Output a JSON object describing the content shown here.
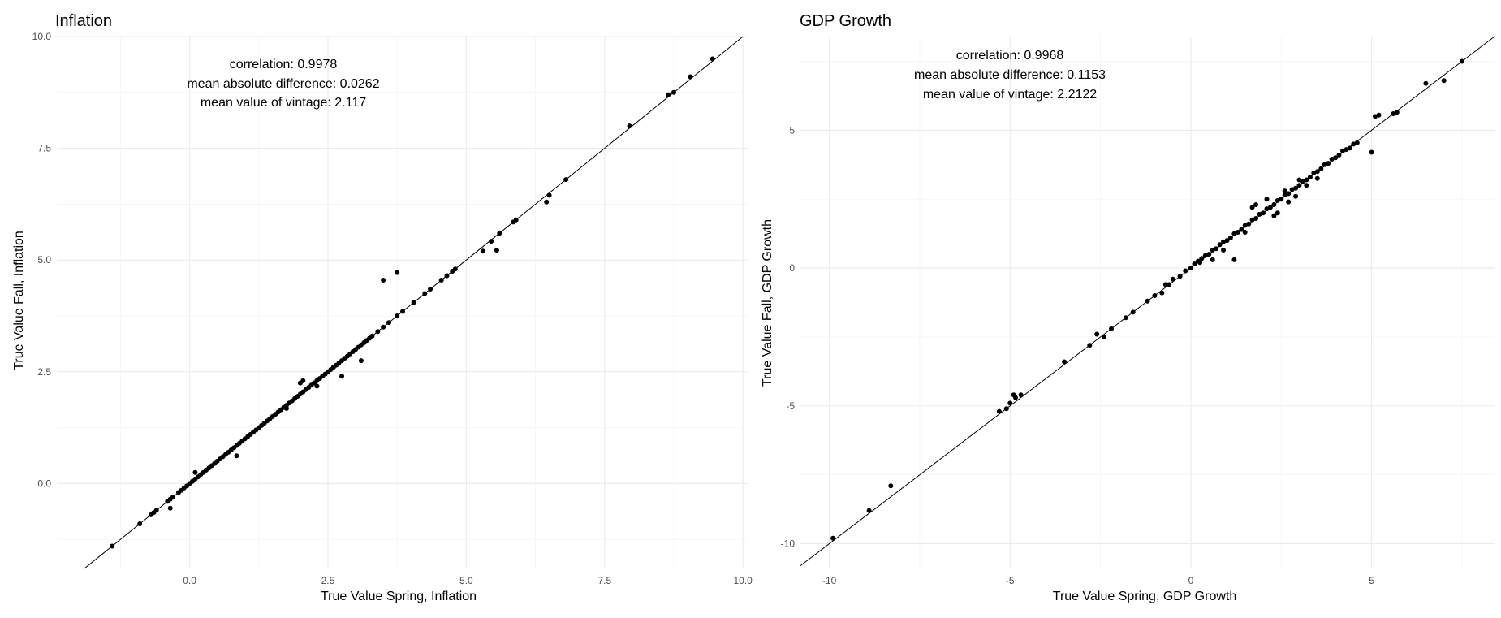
{
  "chart_data": [
    {
      "type": "scatter",
      "title": "Inflation",
      "xlabel": "True Value Spring, Inflation",
      "ylabel": "True Value Fall, Inflation",
      "xlim": [
        -2.4,
        10.1
      ],
      "ylim": [
        -1.9,
        10.0
      ],
      "xticks": [
        0,
        2.5,
        5,
        7.5,
        10
      ],
      "xtick_labels": [
        "0.0",
        "2.5",
        "5.0",
        "7.5",
        "10.0"
      ],
      "yticks": [
        0,
        2.5,
        5,
        7.5,
        10
      ],
      "ytick_labels": [
        "0.0",
        "2.5",
        "5.0",
        "7.5",
        "10.0"
      ],
      "grid": true,
      "reference_line": "y = x",
      "annotations": [
        "correlation: 0.9978",
        "mean absolute difference: 0.0262",
        "mean value of vintage: 2.117"
      ],
      "x": [
        -1.4,
        -0.9,
        -0.7,
        -0.65,
        -0.6,
        -0.4,
        -0.35,
        -0.3,
        -0.2,
        -0.15,
        -0.1,
        -0.05,
        0.0,
        0.05,
        0.1,
        0.15,
        0.2,
        0.25,
        0.3,
        0.35,
        0.4,
        0.45,
        0.5,
        0.55,
        0.6,
        0.65,
        0.7,
        0.75,
        0.8,
        0.85,
        0.9,
        0.95,
        1.0,
        1.05,
        1.1,
        1.15,
        1.2,
        1.25,
        1.3,
        1.35,
        1.4,
        1.45,
        1.5,
        1.55,
        1.6,
        1.65,
        1.7,
        1.75,
        1.8,
        1.85,
        1.9,
        1.95,
        2.0,
        2.05,
        2.1,
        2.15,
        2.2,
        2.25,
        2.3,
        2.35,
        2.4,
        2.45,
        2.5,
        2.55,
        2.6,
        2.65,
        2.7,
        2.75,
        2.8,
        2.85,
        2.9,
        2.95,
        3.0,
        3.05,
        3.1,
        3.15,
        3.2,
        3.25,
        3.3,
        3.4,
        3.5,
        3.6,
        3.75,
        3.85,
        4.05,
        4.25,
        4.35,
        4.55,
        4.65,
        4.75,
        4.8,
        -0.35,
        0.1,
        0.85,
        1.75,
        2.0,
        2.05,
        2.3,
        2.75,
        3.1,
        3.5,
        3.75,
        5.3,
        5.45,
        5.55,
        5.6,
        5.85,
        5.9,
        6.45,
        6.5,
        6.8,
        7.95,
        8.65,
        8.75,
        9.05,
        9.45
      ],
      "y": [
        -1.4,
        -0.9,
        -0.7,
        -0.65,
        -0.6,
        -0.4,
        -0.35,
        -0.3,
        -0.2,
        -0.15,
        -0.1,
        -0.05,
        0.0,
        0.05,
        0.1,
        0.15,
        0.2,
        0.25,
        0.3,
        0.35,
        0.4,
        0.45,
        0.5,
        0.55,
        0.6,
        0.65,
        0.7,
        0.75,
        0.8,
        0.85,
        0.9,
        0.95,
        1.0,
        1.05,
        1.1,
        1.15,
        1.2,
        1.25,
        1.3,
        1.35,
        1.4,
        1.45,
        1.5,
        1.55,
        1.6,
        1.65,
        1.7,
        1.75,
        1.8,
        1.85,
        1.9,
        1.95,
        2.0,
        2.05,
        2.1,
        2.15,
        2.2,
        2.25,
        2.3,
        2.35,
        2.4,
        2.45,
        2.5,
        2.55,
        2.6,
        2.65,
        2.7,
        2.75,
        2.8,
        2.85,
        2.9,
        2.95,
        3.0,
        3.05,
        3.1,
        3.15,
        3.2,
        3.25,
        3.3,
        3.4,
        3.5,
        3.6,
        3.75,
        3.85,
        4.05,
        4.25,
        4.35,
        4.55,
        4.65,
        4.75,
        4.8,
        -0.55,
        0.25,
        0.62,
        1.68,
        2.25,
        2.3,
        2.18,
        2.4,
        2.75,
        4.55,
        4.72,
        5.2,
        5.42,
        5.22,
        5.6,
        5.85,
        5.9,
        6.3,
        6.45,
        6.8,
        8.0,
        8.7,
        8.75,
        9.1,
        9.5
      ]
    },
    {
      "type": "scatter",
      "title": "GDP Growth",
      "xlabel": "True Value Spring, GDP Growth",
      "ylabel": "True Value Fall, GDP Growth",
      "xlim": [
        -10.8,
        8.4
      ],
      "ylim": [
        -10.9,
        8.4
      ],
      "xticks": [
        -10,
        -5,
        0,
        5
      ],
      "xtick_labels": [
        "-10",
        "-5",
        "0",
        "5"
      ],
      "yticks": [
        -10,
        -5,
        0,
        5
      ],
      "ytick_labels": [
        "-10",
        "-5",
        "0",
        "5"
      ],
      "grid": true,
      "reference_line": "y = x",
      "annotations": [
        "correlation: 0.9968",
        "mean absolute difference: 0.1153",
        "mean value of vintage: 2.2122"
      ],
      "x": [
        -9.9,
        -8.9,
        -8.3,
        -5.3,
        -5.1,
        -5.0,
        -4.9,
        -4.85,
        -4.7,
        -3.5,
        -2.8,
        -2.6,
        -2.4,
        -2.2,
        -1.8,
        -1.6,
        -1.2,
        -1.0,
        -0.8,
        -0.7,
        -0.6,
        -0.5,
        -0.3,
        -0.15,
        0.0,
        0.1,
        0.2,
        0.25,
        0.3,
        0.4,
        0.5,
        0.6,
        0.7,
        0.8,
        0.9,
        1.0,
        1.1,
        1.2,
        1.3,
        1.4,
        1.5,
        1.6,
        1.7,
        1.8,
        1.9,
        2.0,
        2.1,
        2.2,
        2.3,
        2.4,
        2.5,
        2.6,
        2.7,
        2.8,
        2.9,
        3.0,
        3.1,
        3.2,
        3.3,
        3.4,
        3.5,
        3.6,
        3.7,
        3.8,
        3.9,
        4.0,
        4.1,
        4.2,
        4.3,
        4.4,
        4.5,
        4.6,
        0.6,
        0.9,
        1.2,
        1.5,
        1.8,
        2.1,
        2.4,
        2.6,
        2.9,
        3.2,
        1.7,
        2.3,
        2.7,
        3.0,
        3.5,
        5.0,
        5.1,
        5.2,
        5.6,
        5.7,
        6.5,
        7.0,
        7.5
      ],
      "y": [
        -9.8,
        -8.8,
        -7.9,
        -5.2,
        -5.1,
        -4.9,
        -4.6,
        -4.7,
        -4.6,
        -3.4,
        -2.8,
        -2.4,
        -2.5,
        -2.2,
        -1.8,
        -1.6,
        -1.2,
        -1.0,
        -0.9,
        -0.6,
        -0.6,
        -0.4,
        -0.3,
        -0.1,
        0.0,
        0.15,
        0.25,
        0.2,
        0.35,
        0.45,
        0.5,
        0.65,
        0.7,
        0.85,
        0.95,
        1.0,
        1.1,
        1.25,
        1.3,
        1.4,
        1.55,
        1.6,
        1.75,
        1.8,
        1.95,
        2.0,
        2.15,
        2.2,
        2.3,
        2.45,
        2.5,
        2.65,
        2.7,
        2.85,
        2.9,
        3.0,
        3.15,
        3.2,
        3.3,
        3.45,
        3.5,
        3.6,
        3.75,
        3.8,
        3.95,
        4.0,
        4.1,
        4.25,
        4.3,
        4.35,
        4.5,
        4.55,
        0.3,
        0.65,
        0.3,
        1.3,
        2.3,
        2.5,
        2.0,
        2.8,
        2.6,
        3.0,
        2.2,
        1.9,
        2.4,
        3.2,
        3.25,
        4.2,
        5.5,
        5.55,
        5.6,
        5.65,
        6.7,
        6.8,
        7.5
      ]
    }
  ]
}
